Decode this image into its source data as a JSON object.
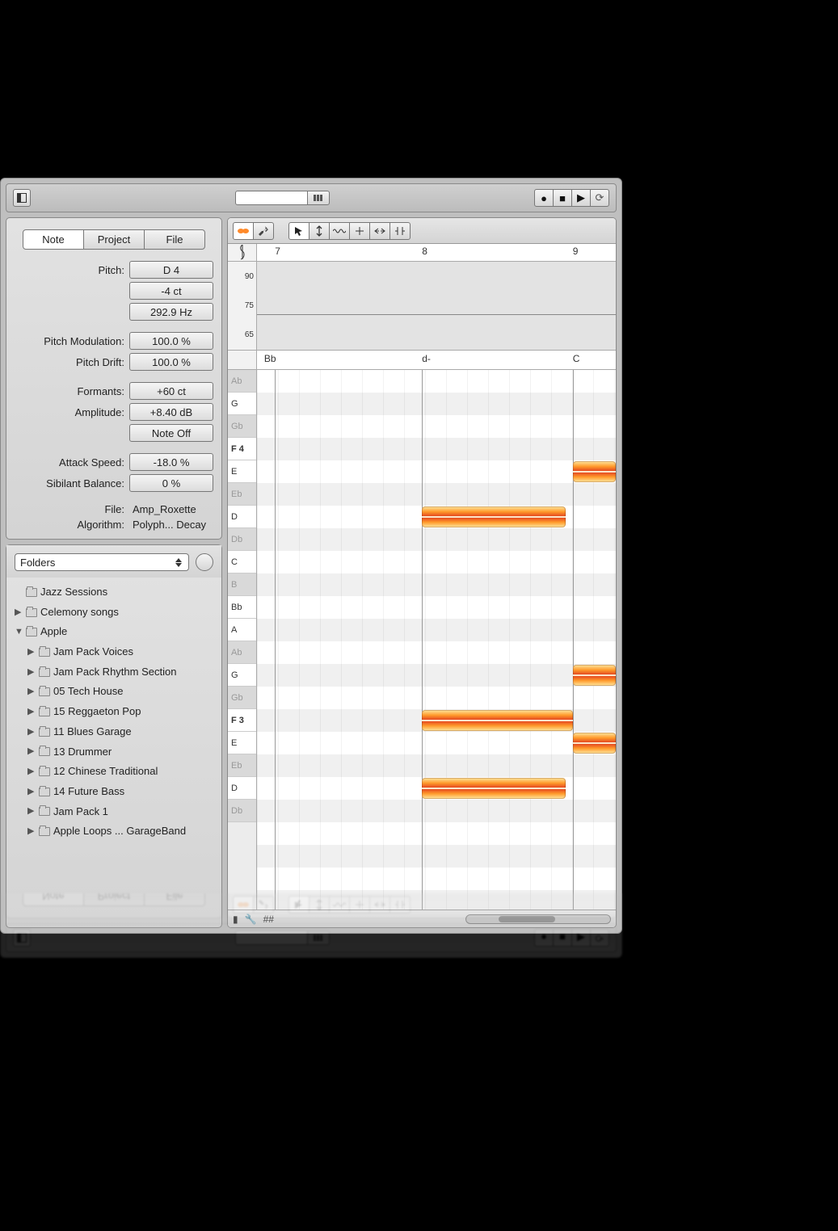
{
  "toolbar": {
    "transport": {
      "record": "●",
      "stop": "■",
      "play": "▶",
      "loop": "⟳"
    }
  },
  "tabs": {
    "note": "Note",
    "project": "Project",
    "file": "File",
    "active": "note"
  },
  "props": {
    "pitch_label": "Pitch:",
    "pitch_note": "D 4",
    "pitch_cents": "-4 ct",
    "pitch_hz": "292.9 Hz",
    "pitch_mod_label": "Pitch Modulation:",
    "pitch_mod": "100.0 %",
    "pitch_drift_label": "Pitch Drift:",
    "pitch_drift": "100.0 %",
    "formants_label": "Formants:",
    "formants": "+60 ct",
    "amplitude_label": "Amplitude:",
    "amplitude": "+8.40 dB",
    "note_off": "Note Off",
    "attack_label": "Attack Speed:",
    "attack": "-18.0 %",
    "sibilant_label": "Sibilant Balance:",
    "sibilant": "0 %",
    "file_label": "File:",
    "file": "Amp_Roxette",
    "algo_label": "Algorithm:",
    "algo": "Polyph... Decay"
  },
  "browser": {
    "dropdown": "Folders",
    "items": [
      {
        "indent": 0,
        "disclosure": "",
        "label": "Jazz Sessions"
      },
      {
        "indent": 0,
        "disclosure": "▶",
        "label": "Celemony songs"
      },
      {
        "indent": 0,
        "disclosure": "▼",
        "label": "Apple"
      },
      {
        "indent": 1,
        "disclosure": "▶",
        "label": "Jam Pack Voices"
      },
      {
        "indent": 1,
        "disclosure": "▶",
        "label": "Jam Pack Rhythm Section"
      },
      {
        "indent": 1,
        "disclosure": "▶",
        "label": "05 Tech House"
      },
      {
        "indent": 1,
        "disclosure": "▶",
        "label": "15 Reggaeton Pop"
      },
      {
        "indent": 1,
        "disclosure": "▶",
        "label": "11 Blues Garage"
      },
      {
        "indent": 1,
        "disclosure": "▶",
        "label": "13 Drummer"
      },
      {
        "indent": 1,
        "disclosure": "▶",
        "label": "12 Chinese Traditional"
      },
      {
        "indent": 1,
        "disclosure": "▶",
        "label": "14 Future Bass"
      },
      {
        "indent": 1,
        "disclosure": "▶",
        "label": "Jam Pack 1"
      },
      {
        "indent": 1,
        "disclosure": "▶",
        "label": "Apple Loops ... GarageBand"
      }
    ]
  },
  "editor": {
    "ruler": {
      "7": 5,
      "8": 46,
      "9": 88
    },
    "amp_ticks": [
      "90",
      "75",
      "65"
    ],
    "amp_line_top_pct": 60,
    "chords": [
      {
        "label": "Bb",
        "pos_pct": 2
      },
      {
        "label": "d-",
        "pos_pct": 46
      },
      {
        "label": "C",
        "pos_pct": 88
      }
    ],
    "keys": [
      "Ab",
      "G",
      "Gb",
      "F 4",
      "E",
      "Eb",
      "D",
      "Db",
      "C",
      "B",
      "Bb",
      "A",
      "Ab",
      "G",
      "Gb",
      "F 3",
      "E",
      "Eb",
      "D",
      "Db"
    ],
    "black_keys": [
      "Ab",
      "Gb",
      "Eb",
      "Db",
      "B"
    ],
    "bold_keys": [
      "F 4",
      "F 3"
    ],
    "blobs": [
      {
        "note": "E",
        "row": 4,
        "left_pct": 88,
        "width_pct": 12
      },
      {
        "note": "D",
        "row": 6,
        "left_pct": 46,
        "width_pct": 40
      },
      {
        "note": "G",
        "row": 13,
        "left_pct": 88,
        "width_pct": 12
      },
      {
        "note": "F 3",
        "row": 15,
        "left_pct": 46,
        "width_pct": 42
      },
      {
        "note": "E",
        "row": 16,
        "left_pct": 88,
        "width_pct": 12
      },
      {
        "note": "D",
        "row": 18,
        "left_pct": 46,
        "width_pct": 40
      }
    ],
    "colors": {
      "blob_gradient": [
        "#ffe9a1",
        "#ff9a2b",
        "#e03a1f",
        "#ff9a2b",
        "#ffe9a1"
      ],
      "panel_bg": "#bfbfbf",
      "grid_line": "#999999"
    },
    "bottom_icons": [
      "▮",
      "🔧",
      "##"
    ]
  }
}
